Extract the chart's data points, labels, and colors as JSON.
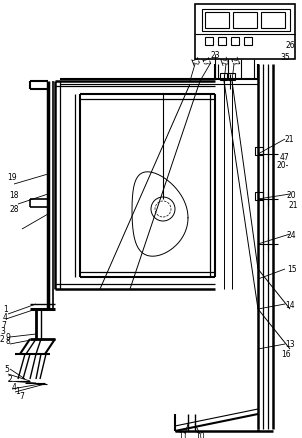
{
  "bg_color": "#ffffff",
  "line_color": "#000000",
  "lw": 0.7,
  "fig_width": 3.02,
  "fig_height": 4.39,
  "dpi": 100
}
